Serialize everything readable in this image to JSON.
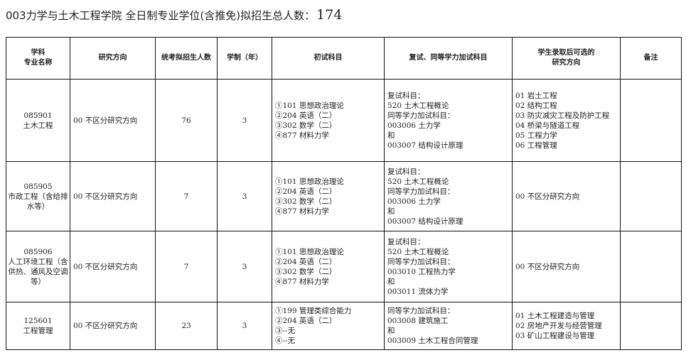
{
  "title": {
    "text": "003力学与土木工程学院  全日制专业学位(含推免)拟招生总人数：",
    "total": "174"
  },
  "headers": [
    "学科\n专业名称",
    "研究方向",
    "统考拟招生人数",
    "学制（年）",
    "初试科目",
    "复试、同等学力加试科目",
    "学生录取后可选的\n研究方向",
    "备注"
  ],
  "rows": [
    {
      "major": [
        "085901",
        "土木工程"
      ],
      "direction": "00 不区分研究方向",
      "quota": "76",
      "years": "3",
      "exam": [
        "①101 思想政治理论",
        "②204 英语（二）",
        "③302 数学（二）",
        "④877 材料力学"
      ],
      "retest": [
        "复试科目：",
        "520 土木工程概论",
        "同等学力加试科目：",
        "003006 土力学",
        "和",
        "003007 结构设计原理"
      ],
      "options": [
        "01 岩土工程",
        "02 结构工程",
        "03 防灾减灾工程及防护工程",
        "04 桥梁与隧道工程",
        "05 工程力学",
        "06 工程管理"
      ],
      "note": ""
    },
    {
      "major": [
        "085905",
        "市政工程（含给排水等）"
      ],
      "direction": "00 不区分研究方向",
      "quota": "7",
      "years": "3",
      "exam": [
        "①101 思想政治理论",
        "②204 英语（二）",
        "③302 数学（二）",
        "④877 材料力学"
      ],
      "retest": [
        "复试科目：",
        "520 土木工程概论",
        "同等学力加试科目：",
        "003006 土力学",
        "和",
        "003007 结构设计原理"
      ],
      "options": [
        "00 不区分研究方向"
      ],
      "note": ""
    },
    {
      "major": [
        "085906",
        "人工环境工程（含供热、通风及空调等）"
      ],
      "direction": "00 不区分研究方向",
      "quota": "7",
      "years": "3",
      "exam": [
        "①101 思想政治理论",
        "②204 英语（二）",
        "③302 数学（二）",
        "④877 材料力学"
      ],
      "retest": [
        "复试科目：",
        "520 土木工程概论",
        "同等学力加试科目：",
        "003010 工程热力学",
        "和",
        "003011 流体力学"
      ],
      "options": [
        "00 不区分研究方向"
      ],
      "note": ""
    },
    {
      "major": [
        "125601",
        "工程管理"
      ],
      "direction": "00 不区分研究方向",
      "quota": "23",
      "years": "3",
      "exam": [
        "①199 管理类综合能力",
        "②204 英语（二）",
        "③--无",
        "④--无"
      ],
      "retest": [
        "同等学力加试科目：",
        "003008 建筑施工",
        "和",
        "003009 土木工程合同管理"
      ],
      "options": [
        "01 土木工程建造与管理",
        "02 房地产开发与经营管理",
        "03 矿山工程建设与管理"
      ],
      "note": ""
    }
  ]
}
